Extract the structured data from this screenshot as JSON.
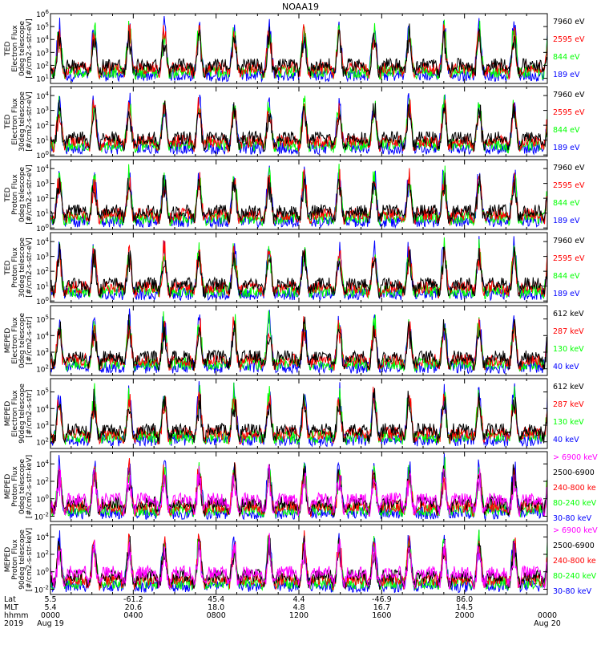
{
  "title": "NOAA19",
  "colors": {
    "black": "#000000",
    "red": "#ff0000",
    "green": "#00ff00",
    "blue": "#0000ff",
    "magenta": "#ff00ff"
  },
  "chart_data": [
    {
      "type": "line",
      "label": [
        "TED",
        "Electron Flux",
        "0deg telescope",
        "[#/cm2-s-str-eV]"
      ],
      "ytick_exps": [
        1,
        2,
        3,
        4,
        5,
        6
      ],
      "ylim_log10": [
        0.6,
        6.0
      ],
      "legend": [
        {
          "name": "7960 eV",
          "color": "#000000"
        },
        {
          "name": "2595 eV",
          "color": "#ff0000"
        },
        {
          "name": "844 eV",
          "color": "#00ff00"
        },
        {
          "name": "189 eV",
          "color": "#0000ff"
        }
      ]
    },
    {
      "type": "line",
      "label": [
        "TED",
        "Electron Flux",
        "30deg telescope",
        "[#/cm2-s-str-eV]"
      ],
      "ytick_exps": [
        0,
        1,
        2,
        3,
        4
      ],
      "ylim_log10": [
        -0.1,
        4.6
      ],
      "legend": [
        {
          "name": "7960 eV",
          "color": "#000000"
        },
        {
          "name": "2595 eV",
          "color": "#ff0000"
        },
        {
          "name": "844 eV",
          "color": "#00ff00"
        },
        {
          "name": "189 eV",
          "color": "#0000ff"
        }
      ]
    },
    {
      "type": "line",
      "label": [
        "TED",
        "Proton Flux",
        "0deg telescope",
        "[#/cm2-s-str-eV]"
      ],
      "ytick_exps": [
        0,
        1,
        2,
        3,
        4
      ],
      "ylim_log10": [
        -0.1,
        4.6
      ],
      "legend": [
        {
          "name": "7960 eV",
          "color": "#000000"
        },
        {
          "name": "2595 eV",
          "color": "#ff0000"
        },
        {
          "name": "844 eV",
          "color": "#00ff00"
        },
        {
          "name": "189 eV",
          "color": "#0000ff"
        }
      ]
    },
    {
      "type": "line",
      "label": [
        "TED",
        "Proton Flux",
        "30deg telescope",
        "[#/cm2-s-str-eV]"
      ],
      "ytick_exps": [
        0,
        1,
        2,
        3,
        4
      ],
      "ylim_log10": [
        -0.1,
        4.6
      ],
      "legend": [
        {
          "name": "7960 eV",
          "color": "#000000"
        },
        {
          "name": "2595 eV",
          "color": "#ff0000"
        },
        {
          "name": "844 eV",
          "color": "#00ff00"
        },
        {
          "name": "189 eV",
          "color": "#0000ff"
        }
      ]
    },
    {
      "type": "line",
      "label": [
        "MEPED",
        "Electron Flux",
        "0deg telescope",
        "[#/cm2-s-str]"
      ],
      "ytick_exps": [
        2,
        3,
        4,
        5
      ],
      "ylim_log10": [
        1.6,
        5.8
      ],
      "legend": [
        {
          "name": "612 keV",
          "color": "#000000"
        },
        {
          "name": "287 keV",
          "color": "#ff0000"
        },
        {
          "name": "130 keV",
          "color": "#00ff00"
        },
        {
          "name": "40 keV",
          "color": "#0000ff"
        }
      ]
    },
    {
      "type": "line",
      "label": [
        "MEPED",
        "Electron Flux",
        "90deg telescope",
        "[#/cm2-s-str]"
      ],
      "ytick_exps": [
        2,
        3,
        4,
        5
      ],
      "ylim_log10": [
        1.6,
        5.8
      ],
      "legend": [
        {
          "name": "612 keV",
          "color": "#000000"
        },
        {
          "name": "287 keV",
          "color": "#ff0000"
        },
        {
          "name": "130 keV",
          "color": "#00ff00"
        },
        {
          "name": "40 keV",
          "color": "#0000ff"
        }
      ]
    },
    {
      "type": "line",
      "label": [
        "MEPED",
        "Proton Flux",
        "0deg telescope",
        "[#/cm2-s-str-keV]"
      ],
      "ytick_exps": [
        -2,
        0,
        2,
        4
      ],
      "ylim_log10": [
        -2.6,
        5.4
      ],
      "legend": [
        {
          "name": "> 6900 keV",
          "color": "#ff00ff"
        },
        {
          "name": "2500-6900",
          "color": "#000000"
        },
        {
          "name": "240-800 ke",
          "color": "#ff0000"
        },
        {
          "name": "80-240 keV",
          "color": "#00ff00"
        },
        {
          "name": "30-80 keV",
          "color": "#0000ff"
        }
      ]
    },
    {
      "type": "line",
      "label": [
        "MEPED",
        "Proton Flux",
        "90deg telescope",
        "[#/cm2-s-str-keV]"
      ],
      "ytick_exps": [
        -2,
        0,
        2,
        4
      ],
      "ylim_log10": [
        -2.6,
        5.4
      ],
      "legend": [
        {
          "name": "> 6900 keV",
          "color": "#ff00ff"
        },
        {
          "name": "2500-6900",
          "color": "#000000"
        },
        {
          "name": "240-800 ke",
          "color": "#ff0000"
        },
        {
          "name": "80-240 keV",
          "color": "#00ff00"
        },
        {
          "name": "30-80 keV",
          "color": "#0000ff"
        }
      ]
    }
  ],
  "xaxis": {
    "row_labels": [
      "Lat",
      "MLT",
      "hhmm",
      "2019"
    ],
    "ticks": [
      {
        "hours": 0,
        "lat": "5.5",
        "mlt": "5.4",
        "hhmm": "0000"
      },
      {
        "hours": 4,
        "lat": "-61.2",
        "mlt": "20.6",
        "hhmm": "0400"
      },
      {
        "hours": 8,
        "lat": "45.4",
        "mlt": "18.0",
        "hhmm": "0800"
      },
      {
        "hours": 12,
        "lat": "4.4",
        "mlt": "4.8",
        "hhmm": "1200"
      },
      {
        "hours": 16,
        "lat": "-46.9",
        "mlt": "16.7",
        "hhmm": "1600"
      },
      {
        "hours": 20,
        "lat": "86.0",
        "mlt": "14.5",
        "hhmm": "2000"
      },
      {
        "hours": 24,
        "lat": "",
        "mlt": "",
        "hhmm": "0000"
      }
    ],
    "start_date": "Aug 19",
    "end_date": "Aug 20",
    "xlim_hours": [
      0,
      24
    ]
  }
}
